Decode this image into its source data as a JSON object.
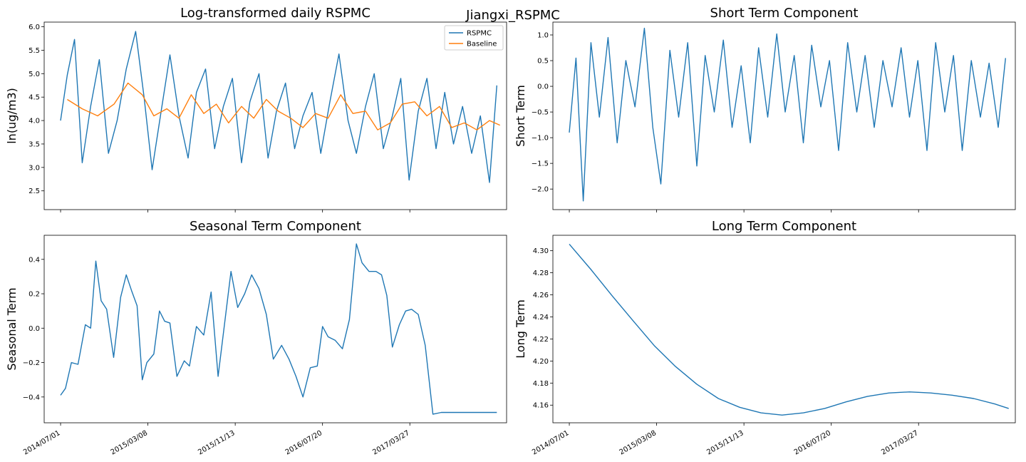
{
  "figure": {
    "suptitle": "Jiangxi_RSPMC"
  },
  "colors": {
    "series_blue": "#1f77b4",
    "series_orange": "#ff7f0e",
    "axis": "#000000"
  },
  "x_dates": [
    "2014/07/01",
    "2015/03/08",
    "2015/11/13",
    "2016/07/20",
    "2017/03/27"
  ],
  "chart_data": [
    {
      "id": "raw",
      "type": "line",
      "title": "Log-transformed daily RSPMC",
      "ylabel": "ln(ug/m3)",
      "xlabel": "",
      "xlim": [
        "2014/05/15",
        "2017/12/29"
      ],
      "ylim": [
        2.1,
        6.1
      ],
      "yticks": [
        2.5,
        3.0,
        3.5,
        4.0,
        4.5,
        5.0,
        5.5,
        6.0
      ],
      "ytick_labels": [
        "2.5",
        "3.0",
        "3.5",
        "4.0",
        "4.5",
        "5.0",
        "5.5",
        "6.0"
      ],
      "xticks": [
        "2014/07/01",
        "2015/03/08",
        "2015/11/13",
        "2016/07/20",
        "2017/03/27"
      ],
      "xtick_labels": [
        "",
        "",
        "",
        "",
        ""
      ],
      "legend": {
        "position": "upper right",
        "entries": [
          "RSPMC",
          "Baseline"
        ]
      },
      "grid": false,
      "series": [
        {
          "name": "RSPMC",
          "color": "#1f77b4",
          "x": [
            "2014/07/01",
            "2014/07/20",
            "2014/08/10",
            "2014/09/01",
            "2014/09/25",
            "2014/10/20",
            "2014/11/15",
            "2014/12/10",
            "2015/01/05",
            "2015/02/01",
            "2015/02/25",
            "2015/03/20",
            "2015/04/15",
            "2015/05/10",
            "2015/06/05",
            "2015/07/01",
            "2015/07/25",
            "2015/08/20",
            "2015/09/15",
            "2015/10/10",
            "2015/11/05",
            "2015/12/01",
            "2015/12/25",
            "2016/01/20",
            "2016/02/15",
            "2016/03/10",
            "2016/04/05",
            "2016/05/01",
            "2016/05/25",
            "2016/06/20",
            "2016/07/15",
            "2016/08/10",
            "2016/09/05",
            "2016/10/01",
            "2016/10/25",
            "2016/11/20",
            "2016/12/15",
            "2017/01/10",
            "2017/02/05",
            "2017/03/01",
            "2017/03/25",
            "2017/04/20",
            "2017/05/15",
            "2017/06/10",
            "2017/07/05",
            "2017/07/30",
            "2017/08/25",
            "2017/09/20",
            "2017/10/15",
            "2017/11/10",
            "2017/12/01"
          ],
          "y": [
            4.0,
            4.97,
            5.73,
            3.1,
            4.3,
            5.3,
            3.3,
            4.0,
            5.1,
            5.9,
            4.5,
            2.95,
            4.2,
            5.4,
            4.1,
            3.2,
            4.6,
            5.1,
            3.4,
            4.3,
            4.9,
            3.1,
            4.4,
            5.0,
            3.2,
            4.2,
            4.8,
            3.4,
            4.1,
            4.6,
            3.3,
            4.4,
            5.42,
            4.0,
            3.3,
            4.3,
            5.0,
            3.4,
            4.1,
            4.9,
            2.73,
            4.2,
            4.9,
            3.4,
            4.6,
            3.5,
            4.3,
            3.3,
            4.1,
            2.68,
            4.75
          ]
        },
        {
          "name": "Baseline",
          "color": "#ff7f0e",
          "x": [
            "2014/07/20",
            "2014/09/01",
            "2014/10/15",
            "2014/12/01",
            "2015/01/10",
            "2015/02/20",
            "2015/03/25",
            "2015/05/01",
            "2015/06/05",
            "2015/07/10",
            "2015/08/15",
            "2015/09/20",
            "2015/10/25",
            "2015/12/01",
            "2016/01/05",
            "2016/02/10",
            "2016/03/15",
            "2016/04/20",
            "2016/05/25",
            "2016/06/30",
            "2016/08/05",
            "2016/09/10",
            "2016/10/15",
            "2016/11/20",
            "2016/12/25",
            "2017/01/30",
            "2017/03/05",
            "2017/04/10",
            "2017/05/15",
            "2017/06/20",
            "2017/07/25",
            "2017/08/30",
            "2017/10/05",
            "2017/11/10",
            "2017/12/10"
          ],
          "y": [
            4.45,
            4.25,
            4.1,
            4.35,
            4.8,
            4.55,
            4.1,
            4.25,
            4.05,
            4.55,
            4.15,
            4.35,
            3.95,
            4.3,
            4.05,
            4.45,
            4.2,
            4.05,
            3.85,
            4.15,
            4.05,
            4.55,
            4.15,
            4.2,
            3.8,
            3.95,
            4.35,
            4.4,
            4.1,
            4.3,
            3.85,
            3.95,
            3.8,
            4.0,
            3.9
          ]
        }
      ]
    },
    {
      "id": "short",
      "type": "line",
      "title": "Short Term Component",
      "ylabel": "Short Term",
      "xlabel": "",
      "xlim": [
        "2014/05/15",
        "2017/12/29"
      ],
      "ylim": [
        -2.4,
        1.25
      ],
      "yticks": [
        -2.0,
        -1.5,
        -1.0,
        -0.5,
        0.0,
        0.5,
        1.0
      ],
      "ytick_labels": [
        "−2.0",
        "−1.5",
        "−1.0",
        "−0.5",
        "0.0",
        "0.5",
        "1.0"
      ],
      "xticks": [
        "2014/07/01",
        "2015/03/08",
        "2015/11/13",
        "2016/07/20",
        "2017/03/27"
      ],
      "xtick_labels": [
        "",
        "",
        "",
        "",
        ""
      ],
      "grid": false,
      "series": [
        {
          "name": "",
          "color": "#1f77b4",
          "x": [
            "2014/07/01",
            "2014/07/20",
            "2014/08/10",
            "2014/09/01",
            "2014/09/25",
            "2014/10/20",
            "2014/11/15",
            "2014/12/10",
            "2015/01/05",
            "2015/02/01",
            "2015/02/25",
            "2015/03/20",
            "2015/04/15",
            "2015/05/10",
            "2015/06/05",
            "2015/07/01",
            "2015/07/25",
            "2015/08/20",
            "2015/09/15",
            "2015/10/10",
            "2015/11/05",
            "2015/12/01",
            "2015/12/25",
            "2016/01/20",
            "2016/02/15",
            "2016/03/10",
            "2016/04/05",
            "2016/05/01",
            "2016/05/25",
            "2016/06/20",
            "2016/07/15",
            "2016/08/10",
            "2016/09/05",
            "2016/10/01",
            "2016/10/25",
            "2016/11/20",
            "2016/12/15",
            "2017/01/10",
            "2017/02/05",
            "2017/03/01",
            "2017/03/25",
            "2017/04/20",
            "2017/05/15",
            "2017/06/10",
            "2017/07/05",
            "2017/07/30",
            "2017/08/25",
            "2017/09/20",
            "2017/10/15",
            "2017/11/10",
            "2017/12/01"
          ],
          "y": [
            -0.9,
            0.55,
            -2.23,
            0.85,
            -0.6,
            0.95,
            -1.1,
            0.5,
            -0.4,
            1.13,
            -0.8,
            -1.9,
            0.7,
            -0.6,
            0.85,
            -1.55,
            0.6,
            -0.5,
            0.9,
            -0.8,
            0.4,
            -1.1,
            0.75,
            -0.6,
            1.02,
            -0.5,
            0.6,
            -1.1,
            0.8,
            -0.4,
            0.5,
            -1.25,
            0.85,
            -0.5,
            0.6,
            -0.8,
            0.5,
            -0.4,
            0.75,
            -0.6,
            0.5,
            -1.25,
            0.85,
            -0.5,
            0.6,
            -1.25,
            0.5,
            -0.6,
            0.45,
            -0.8,
            0.55
          ]
        }
      ]
    },
    {
      "id": "seasonal",
      "type": "line",
      "title": "Seasonal Term Component",
      "ylabel": "Seasonal Term",
      "xlabel": "",
      "xlim": [
        "2014/05/15",
        "2017/12/29"
      ],
      "ylim": [
        -0.55,
        0.54
      ],
      "yticks": [
        -0.4,
        -0.2,
        0.0,
        0.2,
        0.4
      ],
      "ytick_labels": [
        "−0.4",
        "−0.2",
        "0.0",
        "0.2",
        "0.4"
      ],
      "xticks": [
        "2014/07/01",
        "2015/03/08",
        "2015/11/13",
        "2016/07/20",
        "2017/03/27"
      ],
      "xtick_labels": [
        "2014/07/01",
        "2015/03/08",
        "2015/11/13",
        "2016/07/20",
        "2017/03/27"
      ],
      "grid": false,
      "series": [
        {
          "name": "",
          "color": "#1f77b4",
          "x": [
            "2014/07/01",
            "2014/07/15",
            "2014/08/01",
            "2014/08/20",
            "2014/09/10",
            "2014/09/25",
            "2014/10/10",
            "2014/10/25",
            "2014/11/10",
            "2014/11/30",
            "2014/12/20",
            "2015/01/05",
            "2015/01/20",
            "2015/02/05",
            "2015/02/20",
            "2015/03/05",
            "2015/03/25",
            "2015/04/10",
            "2015/04/25",
            "2015/05/10",
            "2015/05/30",
            "2015/06/20",
            "2015/07/05",
            "2015/07/25",
            "2015/08/15",
            "2015/09/05",
            "2015/09/25",
            "2015/10/15",
            "2015/11/01",
            "2015/11/20",
            "2015/12/10",
            "2015/12/30",
            "2016/01/20",
            "2016/02/10",
            "2016/03/01",
            "2016/03/25",
            "2016/04/15",
            "2016/05/05",
            "2016/05/25",
            "2016/06/15",
            "2016/07/05",
            "2016/07/20",
            "2016/08/05",
            "2016/08/25",
            "2016/09/15",
            "2016/10/05",
            "2016/10/25",
            "2016/11/10",
            "2016/11/30",
            "2016/12/20",
            "2017/01/05",
            "2017/01/20",
            "2017/02/05",
            "2017/02/25",
            "2017/03/15",
            "2017/04/01",
            "2017/04/20",
            "2017/05/10",
            "2017/06/01",
            "2017/06/25",
            "2017/07/15",
            "2017/08/05",
            "2017/08/25",
            "2017/09/15",
            "2017/10/05",
            "2017/10/25",
            "2017/11/15",
            "2017/12/01"
          ],
          "y": [
            -0.39,
            -0.35,
            -0.2,
            -0.21,
            0.02,
            0.0,
            0.39,
            0.16,
            0.11,
            -0.17,
            0.18,
            0.31,
            0.22,
            0.13,
            -0.3,
            -0.2,
            -0.15,
            0.1,
            0.04,
            0.03,
            -0.28,
            -0.19,
            -0.22,
            0.01,
            -0.04,
            0.21,
            -0.28,
            0.05,
            0.33,
            0.12,
            0.2,
            0.31,
            0.23,
            0.08,
            -0.18,
            -0.1,
            -0.18,
            -0.28,
            -0.4,
            -0.23,
            -0.22,
            0.01,
            -0.05,
            -0.07,
            -0.12,
            0.05,
            0.49,
            0.38,
            0.33,
            0.33,
            0.31,
            0.19,
            -0.11,
            0.02,
            0.1,
            0.11,
            0.08,
            -0.1,
            -0.5,
            -0.49,
            -0.49,
            -0.49,
            -0.49,
            -0.49,
            -0.49,
            -0.49,
            -0.49,
            -0.49
          ]
        }
      ]
    },
    {
      "id": "long",
      "type": "line",
      "title": "Long Term Component",
      "ylabel": "Long Term",
      "xlabel": "",
      "xlim": [
        "2014/05/15",
        "2017/12/29"
      ],
      "ylim": [
        4.144,
        4.314
      ],
      "yticks": [
        4.16,
        4.18,
        4.2,
        4.22,
        4.24,
        4.26,
        4.28,
        4.3
      ],
      "ytick_labels": [
        "4.16",
        "4.18",
        "4.20",
        "4.22",
        "4.24",
        "4.26",
        "4.28",
        "4.30"
      ],
      "xticks": [
        "2014/07/01",
        "2015/03/08",
        "2015/11/13",
        "2016/07/20",
        "2017/03/27"
      ],
      "xtick_labels": [
        "2014/07/01",
        "2015/03/08",
        "2015/11/13",
        "2016/07/20",
        "2017/03/27"
      ],
      "grid": false,
      "series": [
        {
          "name": "",
          "color": "#1f77b4",
          "x": [
            "2014/07/01",
            "2014/09/01",
            "2014/11/01",
            "2015/01/01",
            "2015/03/01",
            "2015/05/01",
            "2015/07/01",
            "2015/09/01",
            "2015/11/01",
            "2016/01/01",
            "2016/03/01",
            "2016/05/01",
            "2016/07/01",
            "2016/09/01",
            "2016/11/01",
            "2017/01/01",
            "2017/03/01",
            "2017/05/01",
            "2017/07/01",
            "2017/09/01",
            "2017/11/01",
            "2017/12/10"
          ],
          "y": [
            4.306,
            4.283,
            4.259,
            4.236,
            4.214,
            4.195,
            4.179,
            4.166,
            4.158,
            4.153,
            4.151,
            4.153,
            4.157,
            4.163,
            4.168,
            4.171,
            4.172,
            4.171,
            4.169,
            4.166,
            4.161,
            4.157
          ]
        }
      ]
    }
  ]
}
